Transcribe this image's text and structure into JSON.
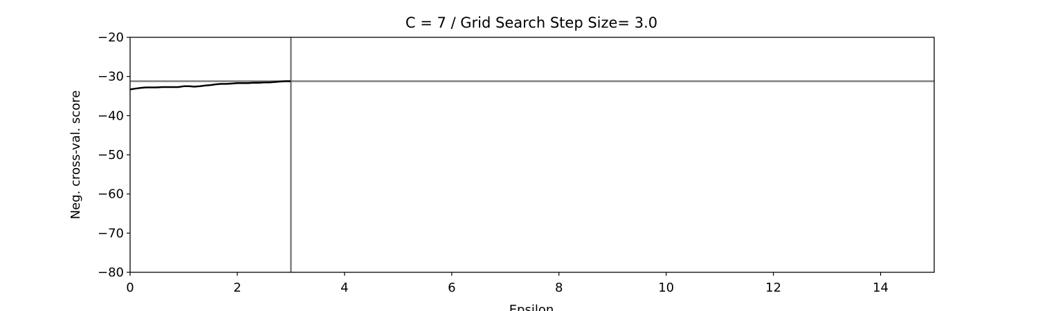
{
  "chart_data": {
    "type": "line",
    "title": "C = 7 / Grid Search Step Size= 3.0",
    "xlabel": "Epsilon",
    "ylabel": "Neg. cross-val. score",
    "xlim": [
      0,
      15
    ],
    "ylim": [
      -80,
      -20
    ],
    "xticks": [
      0,
      2,
      4,
      6,
      8,
      10,
      12,
      14
    ],
    "yticks": [
      -80,
      -70,
      -60,
      -50,
      -40,
      -30,
      -20
    ],
    "grid": false,
    "series": [
      {
        "color": "#000000",
        "x": [
          0,
          0.1,
          0.2,
          0.3,
          0.4,
          0.5,
          0.6,
          0.7,
          0.8,
          0.9,
          1.0,
          1.1,
          1.2,
          1.3,
          1.4,
          1.5,
          1.6,
          1.7,
          1.8,
          1.9,
          2.0,
          2.1,
          2.2,
          2.3,
          2.4,
          2.5,
          2.6,
          2.7,
          2.8,
          2.9,
          3.0
        ],
        "y": [
          -33.3,
          -33.1,
          -32.9,
          -32.8,
          -32.8,
          -32.8,
          -32.7,
          -32.7,
          -32.7,
          -32.7,
          -32.5,
          -32.5,
          -32.6,
          -32.5,
          -32.3,
          -32.2,
          -32.0,
          -31.9,
          -31.9,
          -31.8,
          -31.7,
          -31.7,
          -31.7,
          -31.6,
          -31.6,
          -31.5,
          -31.5,
          -31.4,
          -31.3,
          -31.2,
          -31.2
        ]
      }
    ],
    "reference_lines": {
      "color": "#808080",
      "vertical_x": 3.0,
      "horizontal_y": -31.2
    }
  }
}
